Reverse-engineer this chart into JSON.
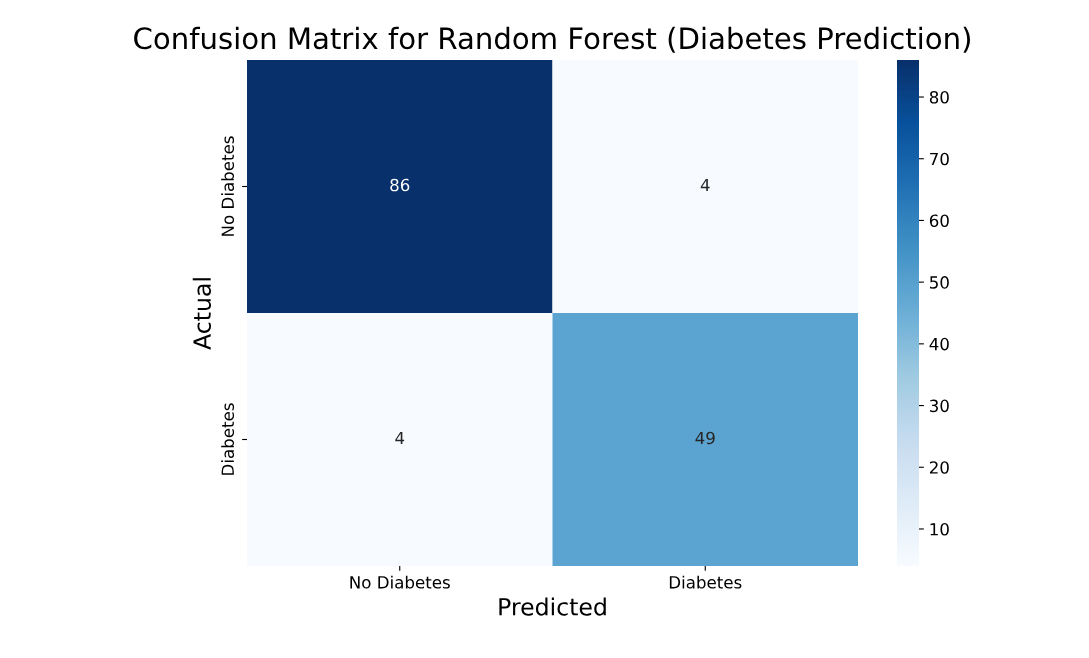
{
  "chart_data": {
    "type": "heatmap",
    "title": "Confusion Matrix for Random Forest (Diabetes Prediction)",
    "xlabel": "Predicted",
    "ylabel": "Actual",
    "categories": [
      "No Diabetes",
      "Diabetes"
    ],
    "y_categories": [
      "No Diabetes",
      "Diabetes"
    ],
    "cells": [
      [
        86,
        4
      ],
      [
        4,
        49
      ]
    ],
    "data_labels": true,
    "clim": [
      4,
      86
    ],
    "cticks": [
      10,
      20,
      30,
      40,
      50,
      60,
      70,
      80
    ]
  }
}
